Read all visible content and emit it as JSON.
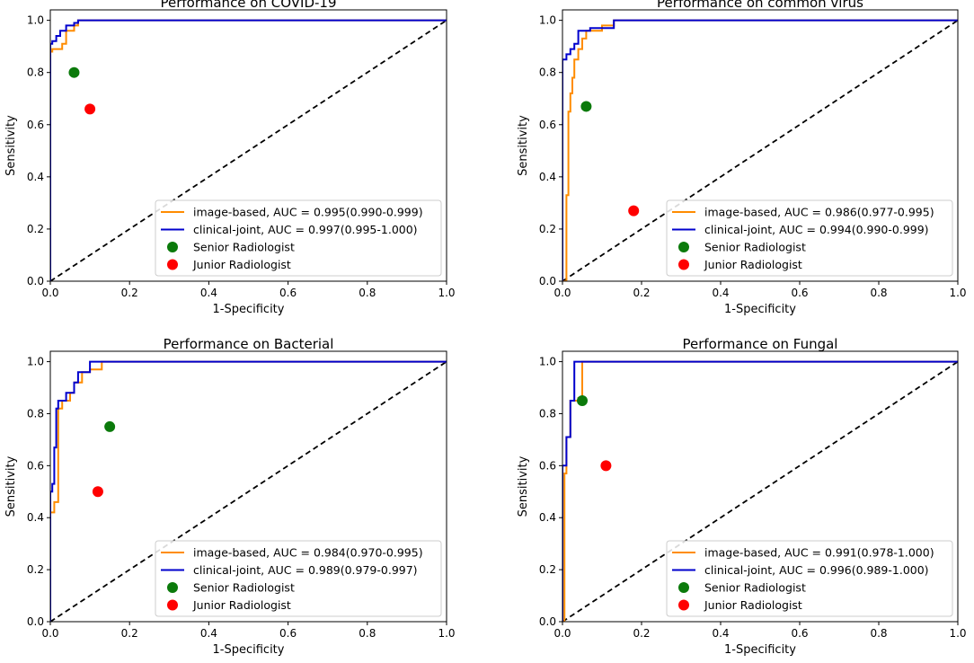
{
  "colors": {
    "image_based": "#ff8c00",
    "clinical_joint": "#0000cd",
    "senior": "#0b7a0b",
    "junior": "#ff0000",
    "diagonal": "#000000"
  },
  "chart_data": [
    {
      "type": "line",
      "title": "Performance on COVID-19",
      "xlabel": "1-Specificity",
      "ylabel": "Sensitivity",
      "xlim": [
        0,
        1
      ],
      "ylim": [
        0,
        1.04
      ],
      "xticks": [
        "0.0",
        "0.2",
        "0.4",
        "0.6",
        "0.8",
        "1.0"
      ],
      "yticks": [
        "0.0",
        "0.2",
        "0.4",
        "0.6",
        "0.8",
        "1.0"
      ],
      "series": [
        {
          "name": "image-based, AUC = 0.995(0.990-0.999)",
          "color_key": "image_based",
          "x": [
            0,
            0,
            0.005,
            0.005,
            0.03,
            0.03,
            0.04,
            0.04,
            0.06,
            0.06,
            0.07,
            0.07,
            1.0
          ],
          "y": [
            0,
            0.88,
            0.88,
            0.89,
            0.89,
            0.91,
            0.91,
            0.96,
            0.96,
            0.98,
            0.98,
            1.0,
            1.0
          ]
        },
        {
          "name": "clinical-joint, AUC = 0.997(0.995-1.000)",
          "color_key": "clinical_joint",
          "x": [
            0,
            0,
            0.005,
            0.005,
            0.015,
            0.015,
            0.025,
            0.025,
            0.04,
            0.04,
            0.06,
            0.06,
            0.07,
            0.07,
            1.0
          ],
          "y": [
            0,
            0.91,
            0.91,
            0.92,
            0.92,
            0.94,
            0.94,
            0.96,
            0.96,
            0.98,
            0.98,
            0.99,
            0.99,
            1.0,
            1.0
          ]
        }
      ],
      "points": [
        {
          "name": "Senior Radiologist",
          "color_key": "senior",
          "x": 0.06,
          "y": 0.8
        },
        {
          "name": "Junior Radiologist",
          "color_key": "junior",
          "x": 0.1,
          "y": 0.66
        }
      ],
      "diagonal": "chance line"
    },
    {
      "type": "line",
      "title": "Performance on common virus",
      "xlabel": "1-Specificity",
      "ylabel": "Sensitivity",
      "xlim": [
        0,
        1
      ],
      "ylim": [
        0,
        1.04
      ],
      "xticks": [
        "0.0",
        "0.2",
        "0.4",
        "0.6",
        "0.8",
        "1.0"
      ],
      "yticks": [
        "0.0",
        "0.2",
        "0.4",
        "0.6",
        "0.8",
        "1.0"
      ],
      "series": [
        {
          "name": "image-based, AUC = 0.986(0.977-0.995)",
          "color_key": "image_based",
          "x": [
            0,
            0.01,
            0.01,
            0.015,
            0.015,
            0.02,
            0.02,
            0.025,
            0.025,
            0.03,
            0.03,
            0.04,
            0.04,
            0.05,
            0.05,
            0.06,
            0.06,
            0.1,
            0.1,
            0.13,
            0.13,
            1.0
          ],
          "y": [
            0,
            0,
            0.33,
            0.33,
            0.65,
            0.65,
            0.72,
            0.72,
            0.78,
            0.78,
            0.85,
            0.85,
            0.89,
            0.89,
            0.93,
            0.93,
            0.96,
            0.96,
            0.98,
            0.98,
            1.0,
            1.0
          ]
        },
        {
          "name": "clinical-joint, AUC = 0.994(0.990-0.999)",
          "color_key": "clinical_joint",
          "x": [
            0,
            0,
            0.01,
            0.01,
            0.02,
            0.02,
            0.03,
            0.03,
            0.04,
            0.04,
            0.07,
            0.07,
            0.13,
            0.13,
            1.0
          ],
          "y": [
            0,
            0.85,
            0.85,
            0.87,
            0.87,
            0.89,
            0.89,
            0.91,
            0.91,
            0.96,
            0.96,
            0.97,
            0.97,
            1.0,
            1.0
          ]
        }
      ],
      "points": [
        {
          "name": "Senior Radiologist",
          "color_key": "senior",
          "x": 0.06,
          "y": 0.67
        },
        {
          "name": "Junior Radiologist",
          "color_key": "junior",
          "x": 0.18,
          "y": 0.27
        }
      ],
      "diagonal": "chance line"
    },
    {
      "type": "line",
      "title": "Performance on Bacterial",
      "xlabel": "1-Specificity",
      "ylabel": "Sensitivity",
      "xlim": [
        0,
        1
      ],
      "ylim": [
        0,
        1.04
      ],
      "xticks": [
        "0.0",
        "0.2",
        "0.4",
        "0.6",
        "0.8",
        "1.0"
      ],
      "yticks": [
        "0.0",
        "0.2",
        "0.4",
        "0.6",
        "0.8",
        "1.0"
      ],
      "series": [
        {
          "name": "image-based, AUC = 0.984(0.970-0.995)",
          "color_key": "image_based",
          "x": [
            0,
            0,
            0.01,
            0.01,
            0.02,
            0.02,
            0.03,
            0.03,
            0.05,
            0.05,
            0.06,
            0.06,
            0.08,
            0.08,
            0.1,
            0.1,
            0.13,
            0.13,
            1.0
          ],
          "y": [
            0,
            0.42,
            0.42,
            0.46,
            0.46,
            0.82,
            0.82,
            0.85,
            0.85,
            0.88,
            0.88,
            0.92,
            0.92,
            0.96,
            0.96,
            0.97,
            0.97,
            1.0,
            1.0
          ]
        },
        {
          "name": "clinical-joint, AUC = 0.989(0.979-0.997)",
          "color_key": "clinical_joint",
          "x": [
            0,
            0,
            0.005,
            0.005,
            0.01,
            0.01,
            0.015,
            0.015,
            0.02,
            0.02,
            0.04,
            0.04,
            0.06,
            0.06,
            0.07,
            0.07,
            0.1,
            0.1,
            1.0
          ],
          "y": [
            0,
            0.5,
            0.5,
            0.53,
            0.53,
            0.67,
            0.67,
            0.82,
            0.82,
            0.85,
            0.85,
            0.88,
            0.88,
            0.92,
            0.92,
            0.96,
            0.96,
            1.0,
            1.0
          ]
        }
      ],
      "points": [
        {
          "name": "Senior Radiologist",
          "color_key": "senior",
          "x": 0.15,
          "y": 0.75
        },
        {
          "name": "Junior Radiologist",
          "color_key": "junior",
          "x": 0.12,
          "y": 0.5
        }
      ],
      "diagonal": "chance line"
    },
    {
      "type": "line",
      "title": "Performance on Fungal",
      "xlabel": "1-Specificity",
      "ylabel": "Sensitivity",
      "xlim": [
        0,
        1
      ],
      "ylim": [
        0,
        1.04
      ],
      "xticks": [
        "0.0",
        "0.2",
        "0.4",
        "0.6",
        "0.8",
        "1.0"
      ],
      "yticks": [
        "0.0",
        "0.2",
        "0.4",
        "0.6",
        "0.8",
        "1.0"
      ],
      "series": [
        {
          "name": "image-based, AUC = 0.991(0.978-1.000)",
          "color_key": "image_based",
          "x": [
            0,
            0.005,
            0.005,
            0.01,
            0.01,
            0.02,
            0.02,
            0.04,
            0.04,
            0.05,
            0.05,
            1.0
          ],
          "y": [
            0,
            0,
            0.57,
            0.57,
            0.71,
            0.71,
            0.85,
            0.85,
            0.86,
            0.86,
            1.0,
            1.0
          ]
        },
        {
          "name": "clinical-joint, AUC = 0.996(0.989-1.000)",
          "color_key": "clinical_joint",
          "x": [
            0,
            0,
            0.01,
            0.01,
            0.02,
            0.02,
            0.03,
            0.03,
            1.0
          ],
          "y": [
            0,
            0.6,
            0.6,
            0.71,
            0.71,
            0.85,
            0.85,
            1.0,
            1.0
          ]
        }
      ],
      "points": [
        {
          "name": "Senior Radiologist",
          "color_key": "senior",
          "x": 0.05,
          "y": 0.85
        },
        {
          "name": "Junior Radiologist",
          "color_key": "junior",
          "x": 0.11,
          "y": 0.6
        }
      ],
      "diagonal": "chance line"
    }
  ]
}
